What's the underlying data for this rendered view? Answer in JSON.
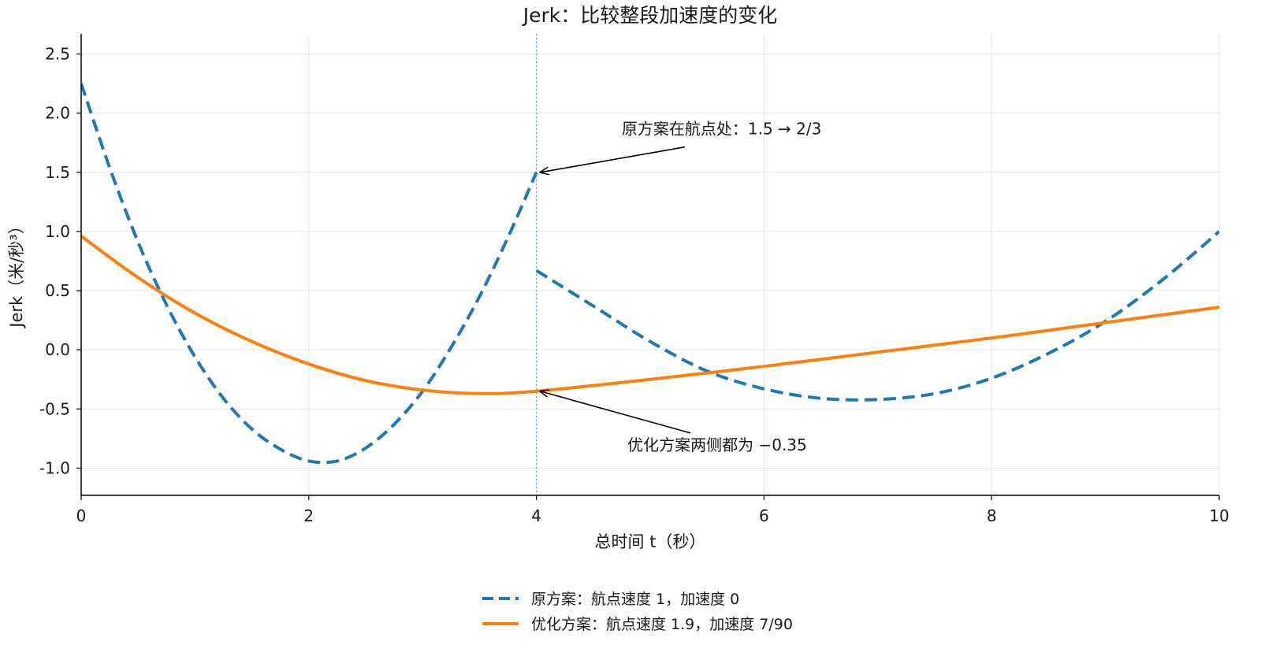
{
  "chart_data": {
    "type": "line",
    "title": "Jerk：比较整段加速度的变化",
    "xlabel": "总时间 t（秒）",
    "ylabel": "Jerk（米/秒³）",
    "xlim": [
      0,
      10
    ],
    "ylim": [
      -1.23,
      2.67
    ],
    "x_ticks": [
      0,
      2,
      4,
      6,
      8,
      10
    ],
    "x_tick_labels": [
      "0",
      "2",
      "4",
      "6",
      "8",
      "10"
    ],
    "y_ticks": [
      -1.0,
      -0.5,
      0.0,
      0.5,
      1.0,
      1.5,
      2.0,
      2.5
    ],
    "y_tick_labels": [
      "-1.0",
      "-0.5",
      "0.0",
      "0.5",
      "1.0",
      "1.5",
      "2.0",
      "2.5"
    ],
    "grid": true,
    "legend_position": "bottom-center",
    "vline_x": 4,
    "series": [
      {
        "name": "原方案：航点速度 1，加速度 0",
        "color": "#1f77b4",
        "style": "dashed",
        "segments": [
          {
            "x": [
              0,
              0.25,
              0.5,
              0.75,
              1.0,
              1.25,
              1.5,
              1.75,
              2.0,
              2.25,
              2.5,
              2.75,
              3.0,
              3.25,
              3.5,
              3.75,
              4.0
            ],
            "y": [
              2.25,
              1.54,
              0.91,
              0.38,
              -0.06,
              -0.41,
              -0.67,
              -0.84,
              -0.94,
              -0.94,
              -0.83,
              -0.63,
              -0.35,
              0.02,
              0.45,
              0.95,
              1.5
            ]
          },
          {
            "x": [
              4.0,
              4.5,
              5.0,
              5.5,
              6.0,
              6.5,
              7.0,
              7.5,
              8.0,
              8.5,
              9.0,
              9.5,
              10.0
            ],
            "y": [
              0.67,
              0.37,
              0.07,
              -0.18,
              -0.33,
              -0.41,
              -0.42,
              -0.37,
              -0.24,
              -0.03,
              0.24,
              0.59,
              1.0
            ]
          }
        ]
      },
      {
        "name": "优化方案：航点速度 1.9，加速度 7/90",
        "color": "#ff7f0e",
        "style": "solid",
        "segments": [
          {
            "x": [
              0,
              0.5,
              1.0,
              1.5,
              2.0,
              2.5,
              3.0,
              3.5,
              4.0,
              5.0,
              6.0,
              7.0,
              8.0,
              9.0,
              10.0
            ],
            "y": [
              0.96,
              0.61,
              0.31,
              0.07,
              -0.12,
              -0.26,
              -0.34,
              -0.37,
              -0.35,
              -0.25,
              -0.14,
              -0.02,
              0.1,
              0.23,
              0.36
            ]
          }
        ]
      }
    ],
    "annotations": [
      {
        "text": "原方案在航点处：1.5 → 2/3",
        "target_x": 4.0,
        "target_y": 1.5,
        "text_x": 4.75,
        "text_y": 1.82
      },
      {
        "text": "优化方案两侧都为 −0.35",
        "target_x": 4.0,
        "target_y": -0.35,
        "text_x": 4.8,
        "text_y": -0.85
      }
    ]
  }
}
